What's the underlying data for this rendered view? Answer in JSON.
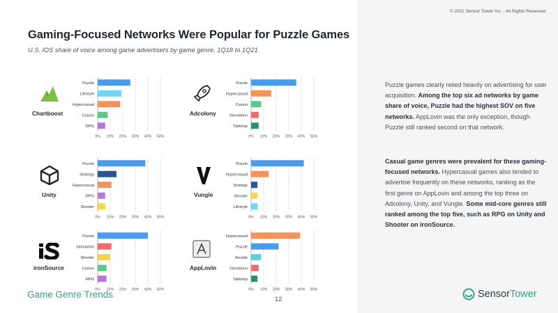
{
  "header": {
    "copyright": "© 2021 Sensor Tower Inc. - All Rights Reserved",
    "title": "Gaming-Focused Networks Were Popular for Puzzle Games",
    "subtitle": "U.S. iOS share of voice among game advertisers by game genre, 1Q18 to 1Q21"
  },
  "commentary": {
    "para1": [
      {
        "text": "Puzzle games clearly relied heavily on advertising for user acquisition. ",
        "bold": false
      },
      {
        "text": "Among the top six ad networks by game share of voice, Puzzle had the highest SOV on five networks.",
        "bold": true
      },
      {
        "text": " AppLovin was the only exception, though Puzzle still ranked second on that network.",
        "bold": false
      }
    ],
    "para2": [
      {
        "text": "Casual game genres were prevalent for these gaming-focused networks.",
        "bold": true
      },
      {
        "text": " Hypercasual games also tended to advertise frequently on these networks, ranking as the first genre on AppLovin and among the top three on Adcolony, Unity, and Vungle. ",
        "bold": false
      },
      {
        "text": "Some mid-core genres still ranked among the top five, such as RPG on Unity and Shooter on ironSource.",
        "bold": true
      }
    ]
  },
  "footer": {
    "section": "Game Genre Trends",
    "page": "12",
    "brand_part1": "Sensor",
    "brand_part2": "Tower"
  },
  "colors": {
    "Puzzle": "#4c9be8",
    "Lifestyle": "#70d4f5",
    "Hypercasual": "#f0945a",
    "Casino": "#58c98b",
    "RPG": "#b27ad6",
    "Simulation": "#ee6c6c",
    "Tabletop": "#2f8c74",
    "Strategy": "#2d5394",
    "Shooter": "#f4d64a",
    "Arcade": "#5ed0d9",
    "brand_green": "#2fa48a"
  },
  "chart_data": [
    {
      "type": "bar",
      "network": "Chartboost",
      "logo": "chartboost-icon",
      "categories": [
        "Puzzle",
        "Lifestyle",
        "Hypercasual",
        "Casino",
        "RPG"
      ],
      "values": [
        26,
        19,
        18,
        8,
        6
      ],
      "xlim": [
        0,
        50
      ],
      "ticks": [
        "0%",
        "10%",
        "20%",
        "30%",
        "40%",
        "50%"
      ]
    },
    {
      "type": "bar",
      "network": "Adcolony",
      "logo": "rocket-icon",
      "categories": [
        "Puzzle",
        "Hypercasual",
        "Casino",
        "Simulation",
        "Tabletop"
      ],
      "values": [
        36,
        16,
        8,
        6,
        6
      ],
      "xlim": [
        0,
        50
      ],
      "ticks": [
        "0%",
        "10%",
        "20%",
        "30%",
        "40%",
        "50%"
      ]
    },
    {
      "type": "bar",
      "network": "Unity",
      "logo": "unity-icon",
      "categories": [
        "Puzzle",
        "Strategy",
        "Hypercasual",
        "RPG",
        "Shooter"
      ],
      "values": [
        38,
        15,
        11,
        6,
        6
      ],
      "xlim": [
        0,
        50
      ],
      "ticks": [
        "0%",
        "10%",
        "20%",
        "30%",
        "40%",
        "50%"
      ]
    },
    {
      "type": "bar",
      "network": "Vungle",
      "logo": "vungle-icon",
      "categories": [
        "Puzzle",
        "Hypercasual",
        "Strategy",
        "Shooter",
        "Lifestyle"
      ],
      "values": [
        42,
        14,
        5,
        5,
        5
      ],
      "xlim": [
        0,
        50
      ],
      "ticks": [
        "0%",
        "10%",
        "20%",
        "30%",
        "40%",
        "50%"
      ]
    },
    {
      "type": "bar",
      "network": "ironSource",
      "logo": "ironsource-icon",
      "categories": [
        "Puzzle",
        "Simulation",
        "Shooter",
        "Casino",
        "RPG"
      ],
      "values": [
        40,
        11,
        10,
        7,
        7
      ],
      "xlim": [
        0,
        50
      ],
      "ticks": [
        "0%",
        "10%",
        "20%",
        "30%",
        "40%",
        "50%"
      ]
    },
    {
      "type": "bar",
      "network": "AppLovin",
      "logo": "applovin-icon",
      "categories": [
        "Hypercasual",
        "Puzzle",
        "Arcade",
        "Simulation",
        "Tabletop"
      ],
      "values": [
        39,
        22,
        8,
        6,
        5
      ],
      "xlim": [
        0,
        50
      ],
      "ticks": [
        "0%",
        "10%",
        "20%",
        "30%",
        "40%",
        "50%"
      ]
    }
  ]
}
